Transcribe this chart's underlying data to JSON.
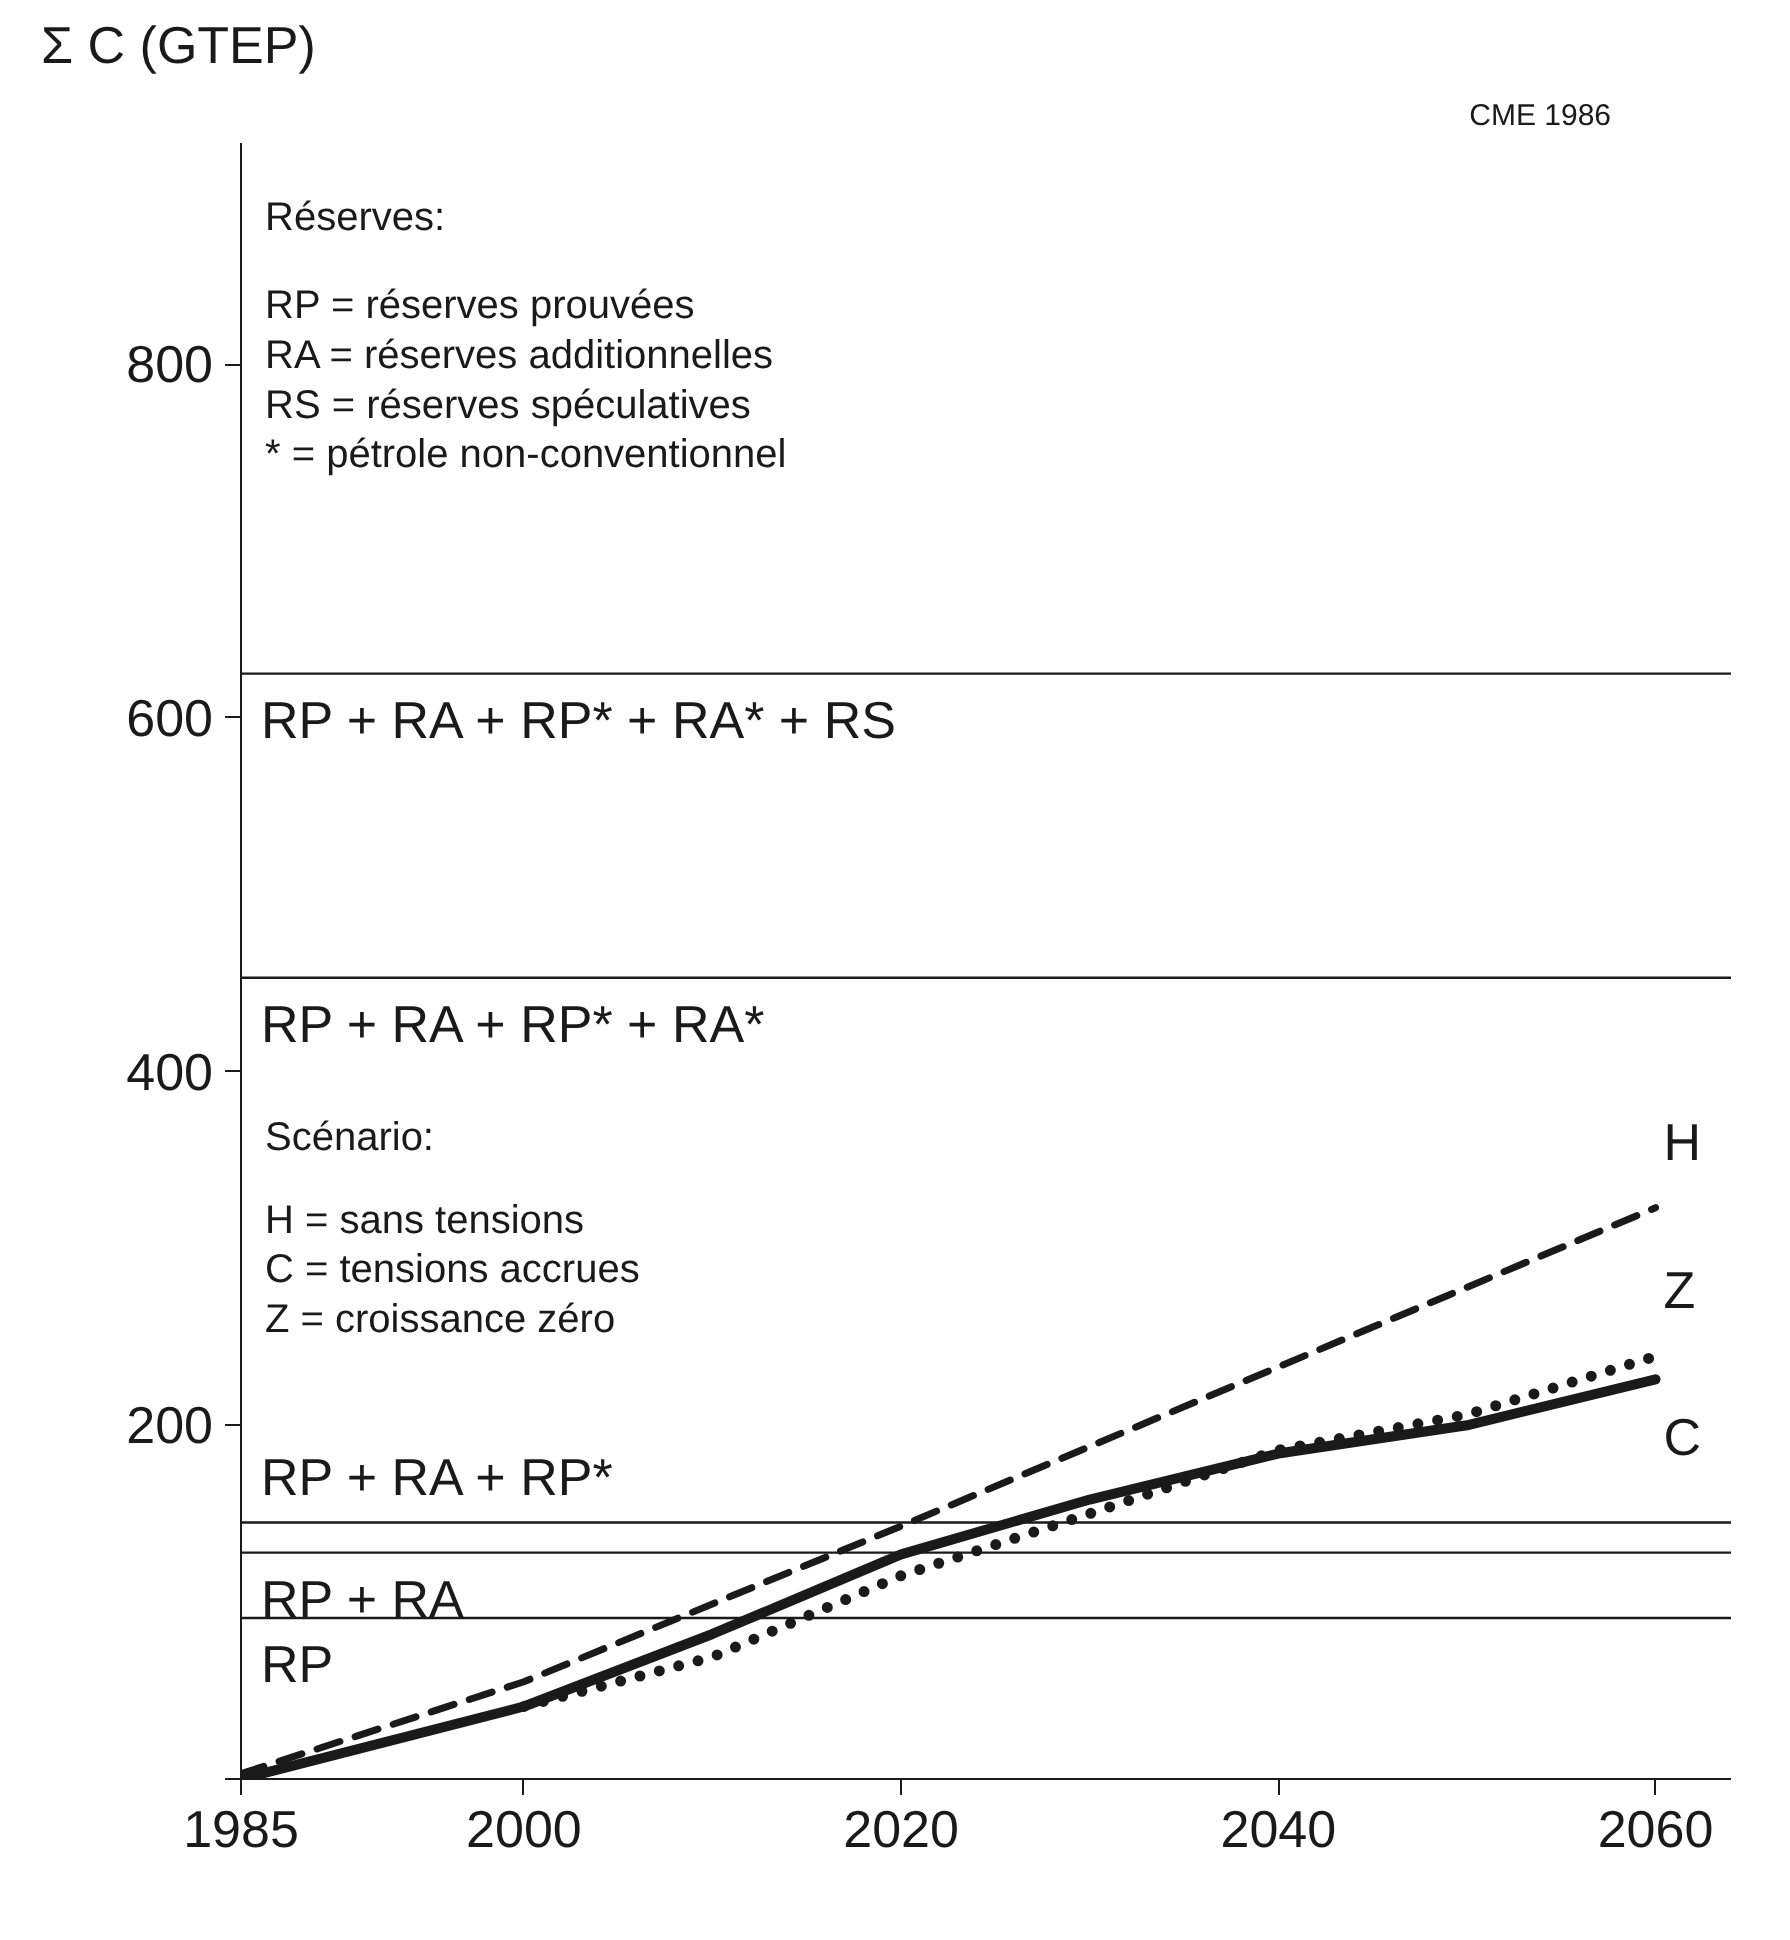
{
  "chart_data": {
    "type": "line",
    "ylabel": "Σ C (GTEP)",
    "xlim": [
      1985,
      2064
    ],
    "ylim": [
      0,
      925
    ],
    "xticks": [
      1985,
      2000,
      2020,
      2040,
      2060
    ],
    "yticks": [
      {
        "value": 0,
        "label": null
      },
      200,
      400,
      600,
      800
    ],
    "grid": false,
    "marker": "none",
    "series": [
      {
        "name": "H",
        "color": "#1a1a1a",
        "line_style": "dashed",
        "x": [
          1985,
          2000,
          2020,
          2040,
          2060
        ],
        "values": [
          3,
          55,
          143,
          233,
          323
        ]
      },
      {
        "name": "C",
        "color": "#1a1a1a",
        "line_style": "solid",
        "x": [
          1985,
          2000,
          2010,
          2020,
          2030,
          2040,
          2050,
          2060
        ],
        "values": [
          0,
          41,
          82,
          127,
          158,
          184,
          200,
          226
        ]
      },
      {
        "name": "Z",
        "color": "#1a1a1a",
        "line_style": "dotted",
        "x": [
          2000,
          2010,
          2020,
          2030,
          2040,
          2050,
          2060
        ],
        "values": [
          41,
          69,
          115,
          150,
          186,
          206,
          239
        ]
      }
    ],
    "ref_lines": [
      {
        "axis": "y",
        "value": 625,
        "label": "RP + RA + RP* + RA* + RS"
      },
      {
        "axis": "y",
        "value": 453,
        "label": "RP + RA + RP* + RA*"
      },
      {
        "axis": "y",
        "value": 145,
        "label": "RP + RA + RP*"
      },
      {
        "axis": "y",
        "value": 128,
        "label": "RP + RA"
      },
      {
        "axis": "y",
        "value": 91,
        "label": "RP"
      }
    ],
    "annotations": [
      "Réserves:",
      "RP = réserves prouvées",
      "RA = réserves additionnelles",
      "RS = réserves spéculatives",
      "* = pétrole non-conventionnel",
      "Scénario:",
      "H = sans tensions",
      "C = tensions accrues",
      "Z = croissance zéro",
      "CME\n1986"
    ]
  }
}
